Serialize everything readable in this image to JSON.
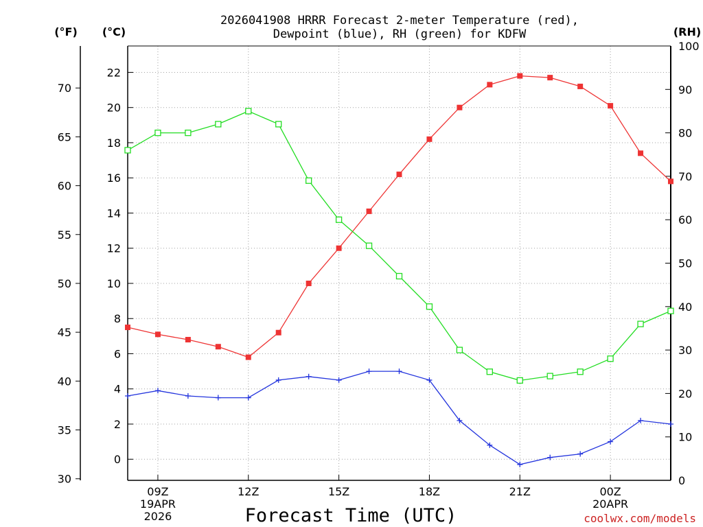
{
  "chart_data": {
    "type": "line",
    "title_lines": [
      "2026041908 HRRR Forecast 2-meter Temperature (red),",
      "Dewpoint (blue), RH (green) for KDFW"
    ],
    "xlabel": "Forecast Time (UTC)",
    "credit": "coolwx.com/models",
    "units": {
      "fahrenheit": "(°F)",
      "celsius": "(°C)",
      "rh": "(RH)"
    },
    "x": [
      8,
      9,
      10,
      11,
      12,
      13,
      14,
      15,
      16,
      17,
      18,
      19,
      20,
      21,
      22,
      23,
      24,
      25,
      26
    ],
    "x_ticks": [
      {
        "x": 9,
        "lines": [
          "09Z",
          "19APR",
          "2026"
        ]
      },
      {
        "x": 12,
        "lines": [
          "12Z"
        ]
      },
      {
        "x": 15,
        "lines": [
          "15Z"
        ]
      },
      {
        "x": 18,
        "lines": [
          "18Z"
        ]
      },
      {
        "x": 21,
        "lines": [
          "21Z"
        ]
      },
      {
        "x": 24,
        "lines": [
          "00Z",
          "20APR"
        ]
      }
    ],
    "celsius_axis": {
      "range": [
        -1.2,
        23.5
      ],
      "ticks": [
        0,
        2,
        4,
        6,
        8,
        10,
        12,
        14,
        16,
        18,
        20,
        22
      ]
    },
    "fahrenheit_axis": {
      "ticks": [
        30,
        35,
        40,
        45,
        50,
        55,
        60,
        65,
        70
      ]
    },
    "rh_axis": {
      "range": [
        0,
        100
      ],
      "ticks": [
        0,
        10,
        20,
        30,
        40,
        50,
        60,
        70,
        80,
        90,
        100
      ]
    },
    "series": [
      {
        "name": "Temperature",
        "color": "#ee3333",
        "axis": "celsius",
        "marker": "filled-square",
        "values": [
          7.5,
          7.1,
          6.8,
          6.4,
          5.8,
          7.2,
          10.0,
          12.0,
          14.1,
          16.2,
          18.2,
          20.0,
          21.3,
          21.8,
          21.7,
          21.2,
          20.1,
          17.4,
          15.8
        ]
      },
      {
        "name": "Dewpoint",
        "color": "#2233dd",
        "axis": "celsius",
        "marker": "plus",
        "values": [
          3.6,
          3.9,
          3.6,
          3.5,
          3.5,
          4.5,
          4.7,
          4.5,
          5.0,
          5.0,
          4.5,
          2.2,
          0.8,
          -0.3,
          0.1,
          0.3,
          1.0,
          2.2,
          2.0
        ]
      },
      {
        "name": "RH",
        "color": "#22dd22",
        "axis": "rh",
        "marker": "open-square",
        "values": [
          76,
          80,
          80,
          82,
          85,
          82,
          69,
          60,
          54,
          47,
          40,
          30,
          25,
          23,
          24,
          25,
          28,
          36,
          39
        ]
      }
    ]
  }
}
